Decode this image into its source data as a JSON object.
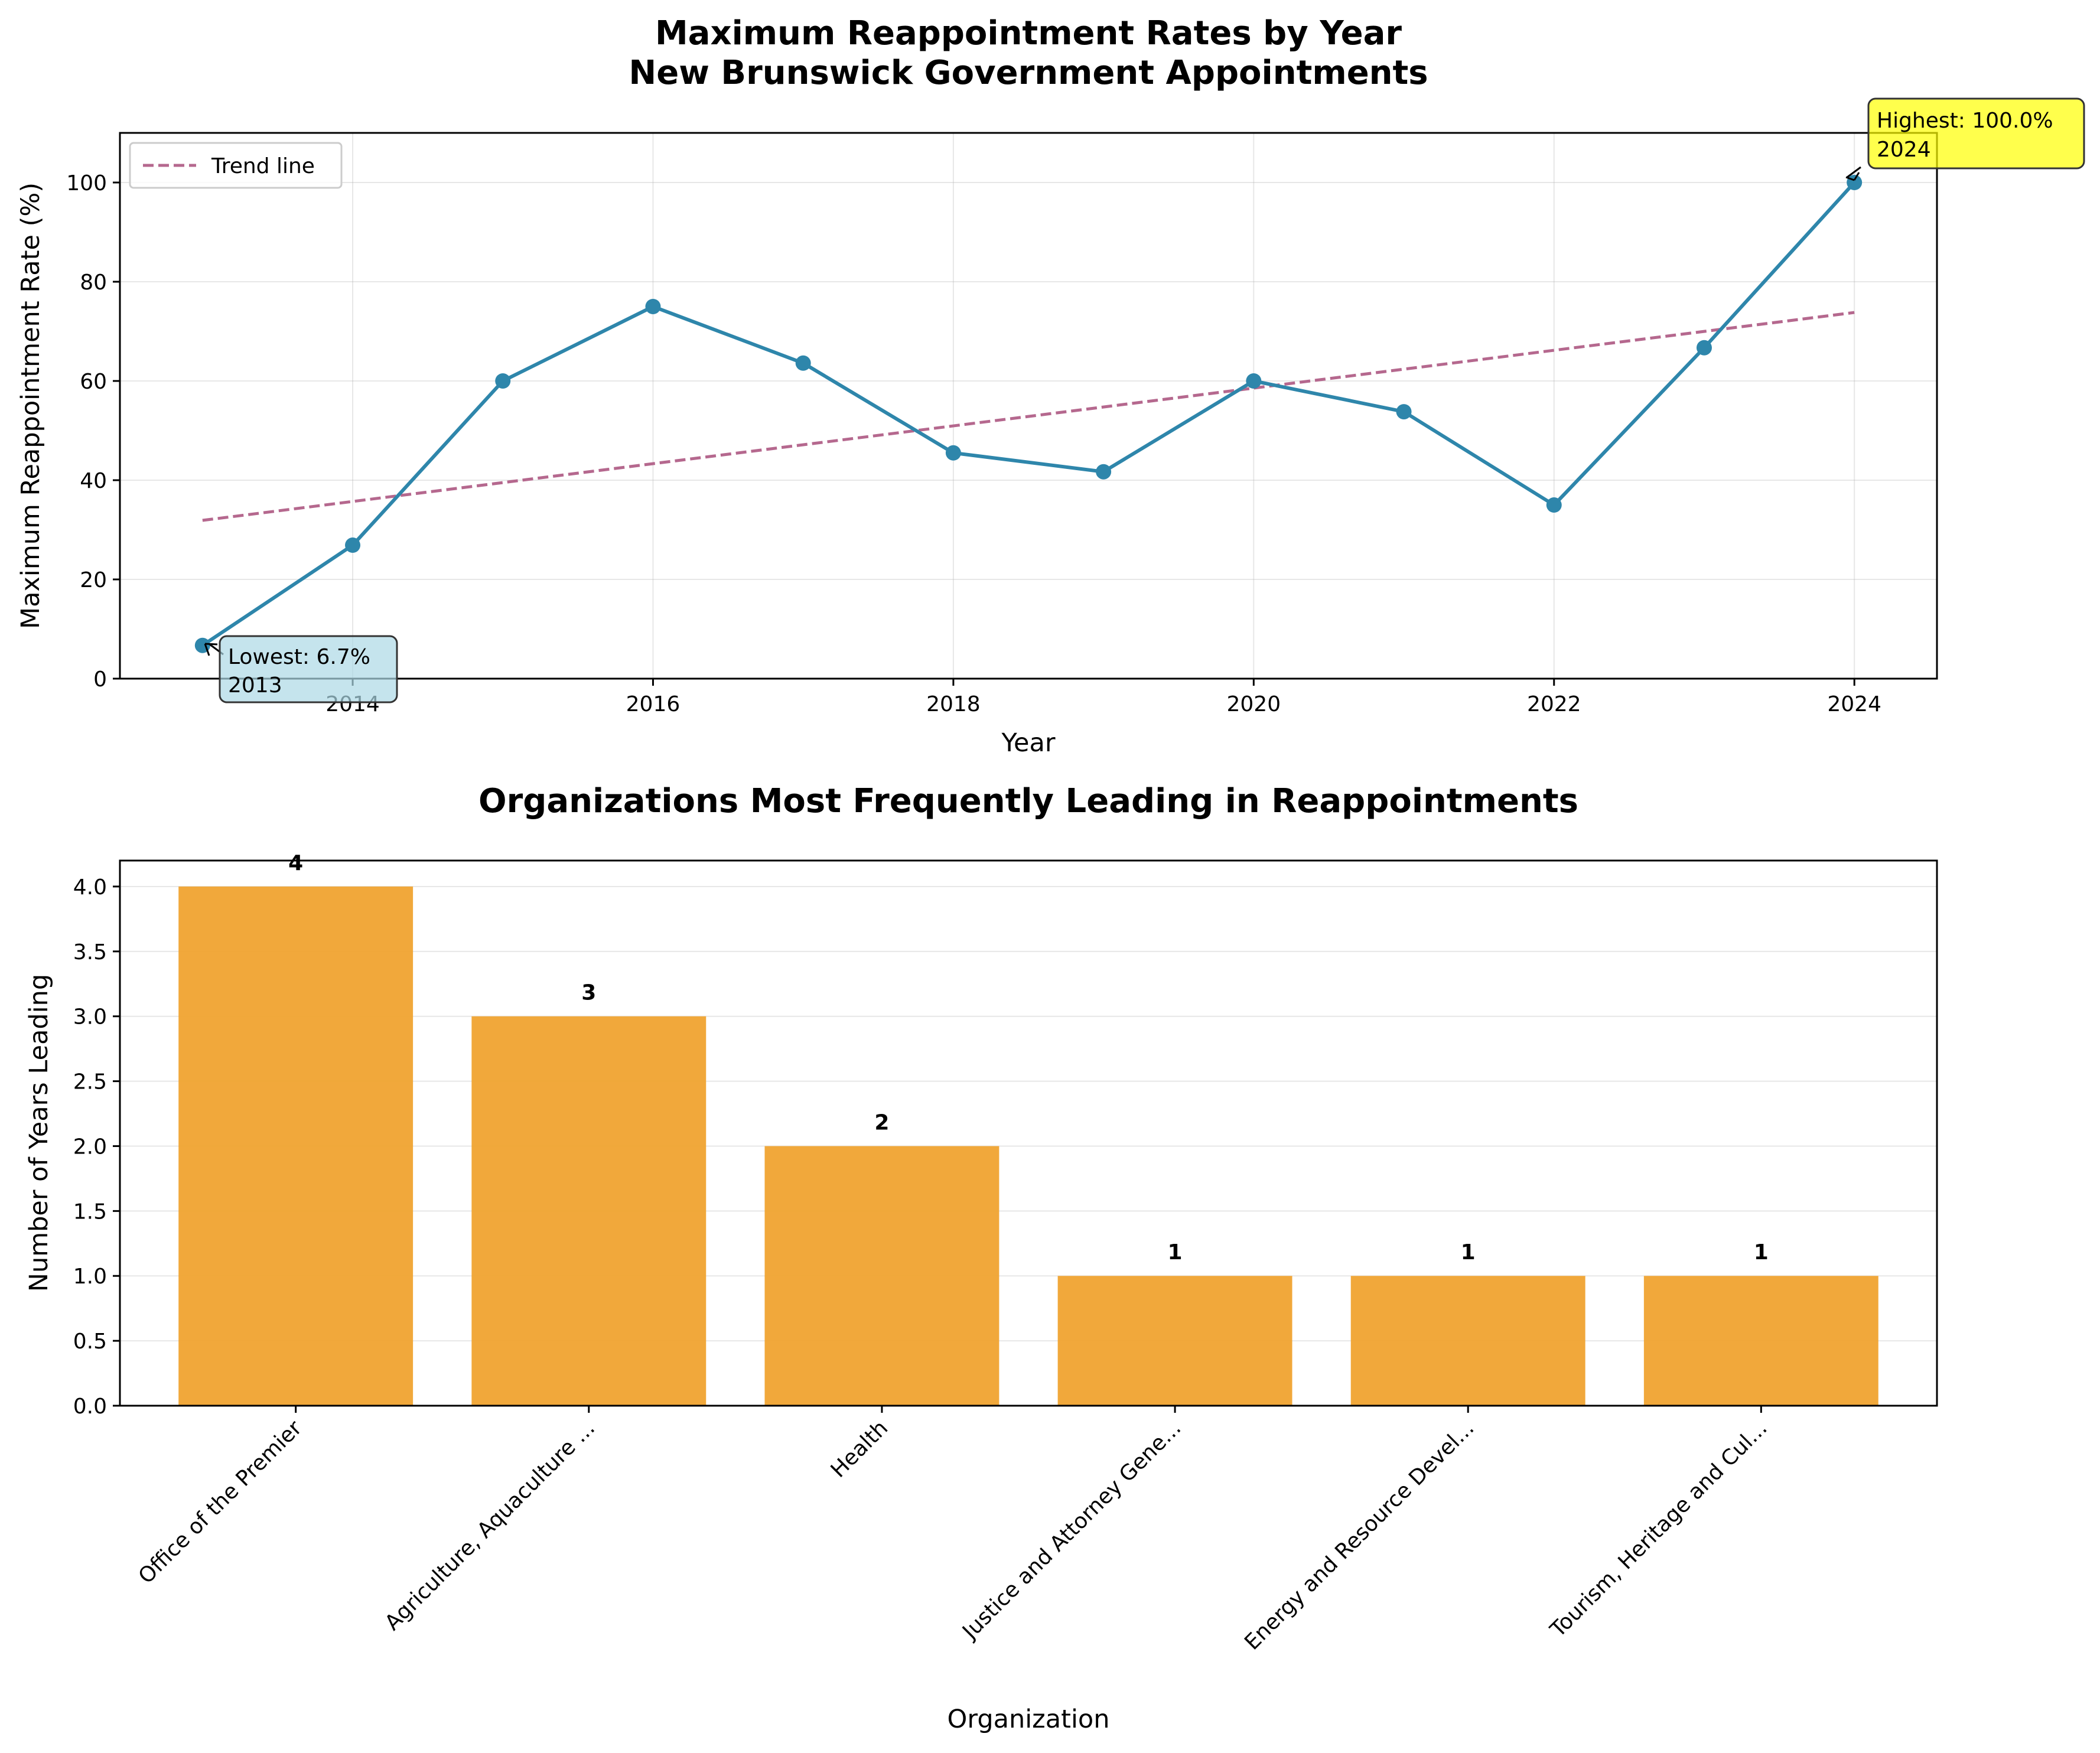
{
  "colors": {
    "line": "#2e86ab",
    "trend": "#b5688e",
    "bar": "#f0a330",
    "annot_low_bg": "#add8e6",
    "annot_high_bg": "#ffff00"
  },
  "chart_data": [
    {
      "type": "line",
      "title": "Maximum Reappointment Rates by Year\nNew Brunswick Government Appointments",
      "title_lines": [
        "Maximum Reappointment Rates by Year",
        "New Brunswick Government Appointments"
      ],
      "xlabel": "Year",
      "ylabel": "Maximum Reappointment Rate (%)",
      "x": [
        2013,
        2014,
        2015,
        2016,
        2017,
        2018,
        2019,
        2020,
        2021,
        2022,
        2023,
        2024
      ],
      "series": [
        {
          "values": [
            6.7,
            26.9,
            60.0,
            75.0,
            63.6,
            45.5,
            41.7,
            60.0,
            53.8,
            35.0,
            66.7,
            100.0
          ]
        }
      ],
      "trend": {
        "name": "Trend line",
        "start": [
          2013,
          31.9
        ],
        "end": [
          2024,
          73.8
        ]
      },
      "xticks": [
        2014,
        2016,
        2018,
        2020,
        2022,
        2024
      ],
      "xtick_labels": [
        "2014",
        "2016",
        "2018",
        "2020",
        "2022",
        "2024"
      ],
      "yticks": [
        0,
        20,
        40,
        60,
        80,
        100
      ],
      "ytick_labels": [
        "0",
        "20",
        "40",
        "60",
        "80",
        "100"
      ],
      "xlim": [
        2012.45,
        2024.55
      ],
      "ylim": [
        0,
        110
      ],
      "grid": true,
      "legend": {
        "placement": "top-left",
        "entries": [
          "Trend line"
        ]
      },
      "annotations": [
        {
          "point": [
            2013,
            6.7
          ],
          "lines": [
            "Lowest: 6.7%",
            "2013"
          ]
        },
        {
          "point": [
            2024,
            100.0
          ],
          "lines": [
            "Highest: 100.0%",
            "2024"
          ]
        }
      ]
    },
    {
      "type": "bar",
      "title": "Organizations Most Frequently Leading in Reappointments",
      "xlabel": "Organization",
      "ylabel": "Number of Years Leading",
      "categories": [
        "Office of the Premier",
        "Agriculture, Aquaculture ...",
        "Health",
        "Justice and Attorney Gene...",
        "Energy and Resource Devel...",
        "Tourism, Heritage and Cul..."
      ],
      "values": [
        4,
        3,
        2,
        1,
        1,
        1
      ],
      "value_labels": [
        "4",
        "3",
        "2",
        "1",
        "1",
        "1"
      ],
      "yticks": [
        0,
        0.5,
        1,
        1.5,
        2,
        2.5,
        3,
        3.5,
        4
      ],
      "ytick_labels": [
        "0.0",
        "0.5",
        "1.0",
        "1.5",
        "2.0",
        "2.5",
        "3.0",
        "3.5",
        "4.0"
      ],
      "ylim": [
        0,
        4.2
      ],
      "grid": true
    }
  ]
}
